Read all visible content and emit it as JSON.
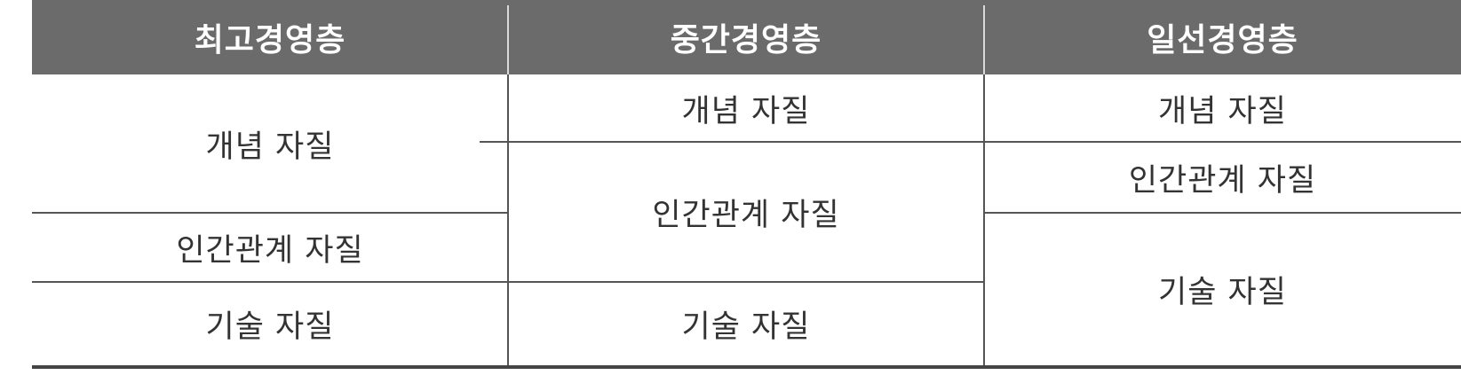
{
  "table": {
    "headers": [
      "최고경영층",
      "중간경영층",
      "일선경영층"
    ],
    "columns": [
      {
        "cells": [
          "개념 자질",
          "인간관계 자질",
          "기술 자질"
        ]
      },
      {
        "cells": [
          "개념 자질",
          "인간관계 자질",
          "기술 자질"
        ]
      },
      {
        "cells": [
          "개념 자질",
          "인간관계 자질",
          "기술 자질"
        ]
      }
    ]
  },
  "colors": {
    "header_bg": "#6b6b6b",
    "header_text": "#ffffff",
    "body_text": "#333333",
    "rule": "#555555"
  }
}
